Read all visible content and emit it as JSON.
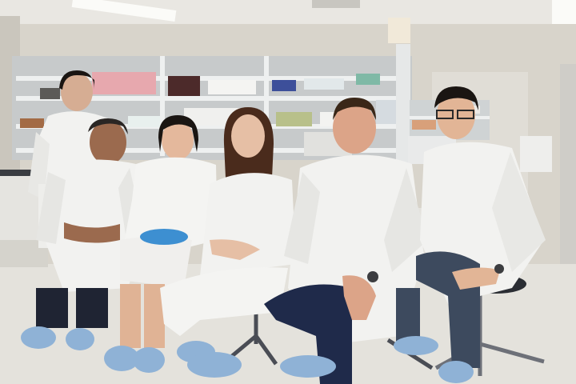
{
  "photo": {
    "subject": "lab-team-group-photo",
    "palette": {
      "ceiling": "#e9e7e2",
      "wall": "#d8d4cb",
      "floor": "#e4e2dc",
      "shelf": "#cfd2d3",
      "coat": "#f2f2f0",
      "coat_shadow": "#d6d6d4",
      "shoe_cover": "#8fb2d6",
      "glove": "#3d8fd1",
      "jeans": "#3d4a5e",
      "dark_pants": "#1f2433",
      "hair_dark": "#1a1512",
      "hair_brown": "#4a2b1c",
      "skin": "#d9a98c"
    },
    "people_count": 6
  }
}
